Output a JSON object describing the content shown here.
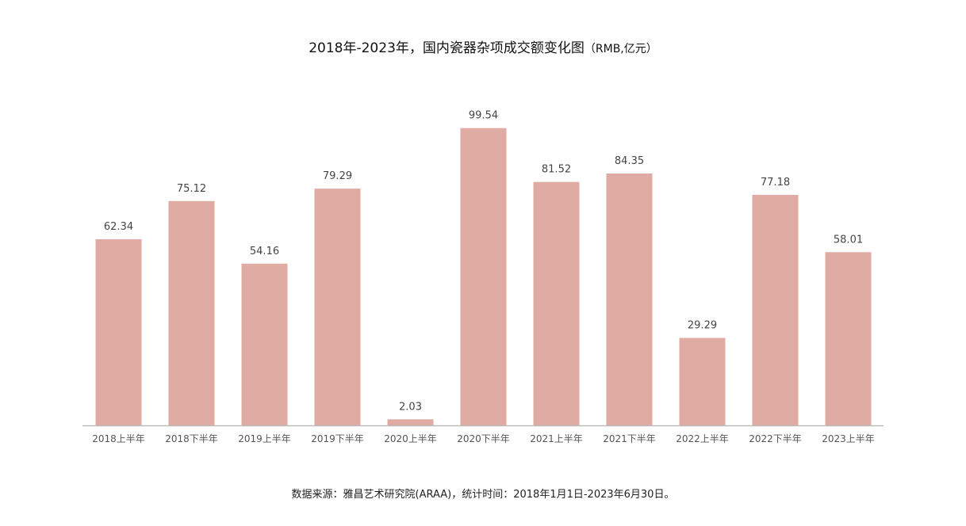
{
  "title": "2018年-2023年，国内瓷器杂项成交额变化图",
  "title_unit": "（RMB,亿元）",
  "source": "数据来源：雅昌艺术研究院(ARAA)，统计时间：2018年1月1日-2023年6月30日。",
  "colors": {
    "bar": "#dfaba3",
    "axis": "#bbbbbb",
    "tick_label": "#555555",
    "value_label": "#444444"
  },
  "chart_data": {
    "type": "bar",
    "title": "2018年-2023年，国内瓷器杂项成交额变化图（RMB,亿元）",
    "categories": [
      "2018上半年",
      "2018下半年",
      "2019上半年",
      "2019下半年",
      "2020上半年",
      "2020下半年",
      "2021上半年",
      "2021下半年",
      "2022上半年",
      "2022下半年",
      "2023上半年"
    ],
    "values": [
      62.34,
      75.12,
      54.16,
      79.29,
      2.03,
      99.54,
      81.52,
      84.35,
      29.29,
      77.18,
      58.01
    ],
    "value_labels": [
      "62.34",
      "75.12",
      "54.16",
      "79.29",
      "2.03",
      "99.54",
      "81.52",
      "84.35",
      "29.29",
      "77.18",
      "58.01"
    ],
    "xlabel": "",
    "ylabel": "",
    "ylim": [
      0,
      100
    ],
    "grid": false,
    "legend": "none",
    "data_labels": true
  }
}
